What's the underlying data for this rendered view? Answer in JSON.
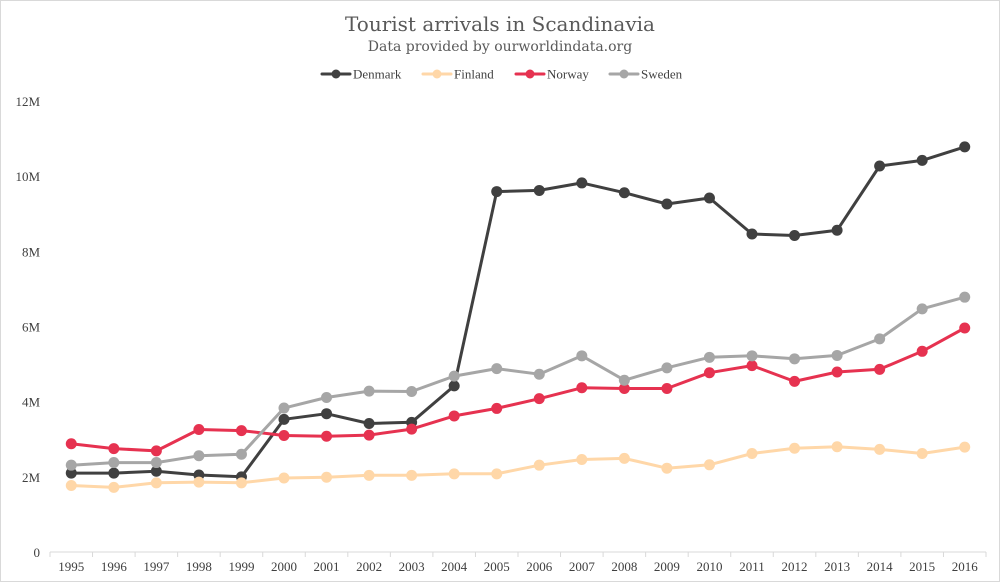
{
  "chart_data": {
    "type": "line",
    "title": "Tourist arrivals in Scandinavia",
    "subtitle": "Data provided by ourworldindata.org",
    "xlabel": "",
    "ylabel": "",
    "x": [
      "1995",
      "1996",
      "1997",
      "1998",
      "1999",
      "2000",
      "2001",
      "2002",
      "2003",
      "2004",
      "2005",
      "2006",
      "2007",
      "2008",
      "2009",
      "2010",
      "2011",
      "2012",
      "2013",
      "2014",
      "2015",
      "2016"
    ],
    "ylim": [
      0,
      12000000
    ],
    "yticks": [
      0,
      2000000,
      4000000,
      6000000,
      8000000,
      10000000,
      12000000
    ],
    "ytick_labels": [
      "0",
      "2M",
      "4M",
      "6M",
      "8M",
      "10M",
      "12M"
    ],
    "grid": false,
    "legend_position": "top",
    "series": [
      {
        "name": "Denmark",
        "color": "#404040",
        "values": [
          2100000,
          2100000,
          2150000,
          2050000,
          2000000,
          3530000,
          3680000,
          3420000,
          3450000,
          4420000,
          9590000,
          9620000,
          9820000,
          9560000,
          9260000,
          9420000,
          8460000,
          8420000,
          8560000,
          10270000,
          10420000,
          10780000
        ]
      },
      {
        "name": "Finland",
        "color": "#ffd7a8",
        "values": [
          1770000,
          1720000,
          1840000,
          1860000,
          1840000,
          1970000,
          1990000,
          2040000,
          2040000,
          2080000,
          2080000,
          2310000,
          2460000,
          2490000,
          2230000,
          2320000,
          2620000,
          2760000,
          2800000,
          2730000,
          2620000,
          2790000
        ]
      },
      {
        "name": "Norway",
        "color": "#e63250",
        "values": [
          2880000,
          2750000,
          2690000,
          3260000,
          3230000,
          3100000,
          3080000,
          3110000,
          3270000,
          3620000,
          3820000,
          4080000,
          4370000,
          4350000,
          4350000,
          4770000,
          4960000,
          4540000,
          4790000,
          4860000,
          5340000,
          5960000
        ]
      },
      {
        "name": "Sweden",
        "color": "#a6a6a6",
        "values": [
          2310000,
          2380000,
          2380000,
          2560000,
          2600000,
          3830000,
          4110000,
          4280000,
          4270000,
          4680000,
          4880000,
          4730000,
          5220000,
          4570000,
          4900000,
          5180000,
          5220000,
          5140000,
          5230000,
          5670000,
          6470000,
          6780000
        ]
      }
    ]
  }
}
